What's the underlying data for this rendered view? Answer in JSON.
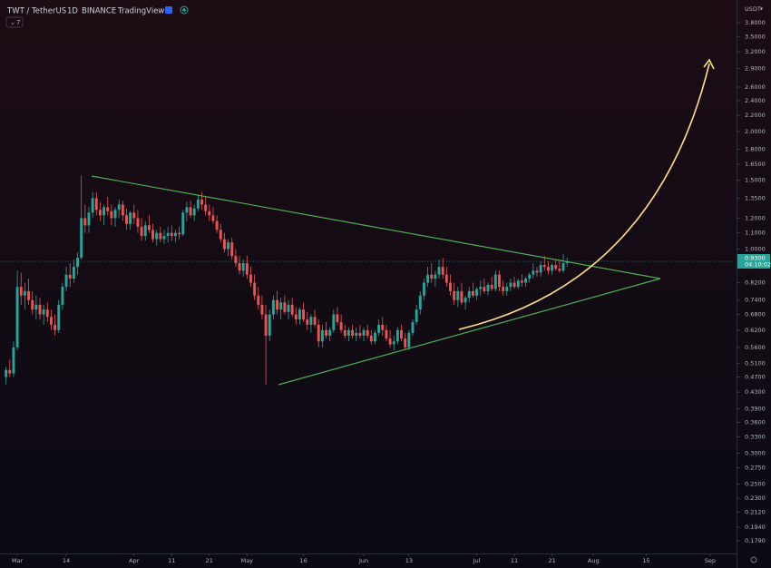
{
  "header": {
    "symbol": "TWT / TetherUS",
    "interval": "1D",
    "exchange": "BINANCE",
    "source": "TradingView",
    "indicator_count": 7
  },
  "chart_data": {
    "type": "candlestick",
    "currency": "USDT",
    "log_scale": true,
    "grid": false,
    "up_color": "#26a69a",
    "down_color": "#ef5350",
    "xlim": [
      -4.6,
      191
    ],
    "ylim": [
      0.166,
      4.23
    ],
    "xticks": [
      {
        "value": 0,
        "label": "Mar"
      },
      {
        "value": 13,
        "label": "14"
      },
      {
        "value": 31,
        "label": "Apr"
      },
      {
        "value": 41,
        "label": "11"
      },
      {
        "value": 51,
        "label": "21"
      },
      {
        "value": 61,
        "label": "May"
      },
      {
        "value": 76,
        "label": "16"
      },
      {
        "value": 92,
        "label": "Jun"
      },
      {
        "value": 104,
        "label": "13"
      },
      {
        "value": 122,
        "label": "Jul"
      },
      {
        "value": 132,
        "label": "11"
      },
      {
        "value": 142,
        "label": "21"
      },
      {
        "value": 153,
        "label": "Aug"
      },
      {
        "value": 167,
        "label": "15"
      },
      {
        "value": 184,
        "label": "Sep"
      }
    ],
    "yticks": [
      {
        "value": 3.8,
        "label": "3.8000"
      },
      {
        "value": 3.5,
        "label": "3.5000"
      },
      {
        "value": 3.2,
        "label": "3.2000"
      },
      {
        "value": 2.9,
        "label": "2.9000"
      },
      {
        "value": 2.6,
        "label": "2.6000"
      },
      {
        "value": 2.4,
        "label": "2.4000"
      },
      {
        "value": 2.2,
        "label": "2.2000"
      },
      {
        "value": 2.0,
        "label": "2.0000"
      },
      {
        "value": 1.8,
        "label": "1.8000"
      },
      {
        "value": 1.65,
        "label": "1.6500"
      },
      {
        "value": 1.5,
        "label": "1.5000"
      },
      {
        "value": 1.35,
        "label": "1.3500"
      },
      {
        "value": 1.2,
        "label": "1.2000"
      },
      {
        "value": 1.1,
        "label": "1.1000"
      },
      {
        "value": 1.0,
        "label": "1.0000"
      },
      {
        "value": 0.82,
        "label": "0.8200"
      },
      {
        "value": 0.74,
        "label": "0.7400"
      },
      {
        "value": 0.68,
        "label": "0.6800"
      },
      {
        "value": 0.62,
        "label": "0.6200"
      },
      {
        "value": 0.56,
        "label": "0.5600"
      },
      {
        "value": 0.51,
        "label": "0.5100"
      },
      {
        "value": 0.47,
        "label": "0.4700"
      },
      {
        "value": 0.43,
        "label": "0.4300"
      },
      {
        "value": 0.39,
        "label": "0.3900"
      },
      {
        "value": 0.36,
        "label": "0.3600"
      },
      {
        "value": 0.33,
        "label": "0.3300"
      },
      {
        "value": 0.3,
        "label": "0.3000"
      },
      {
        "value": 0.275,
        "label": "0.2750"
      },
      {
        "value": 0.25,
        "label": "0.2500"
      },
      {
        "value": 0.23,
        "label": "0.2300"
      },
      {
        "value": 0.212,
        "label": "0.2120"
      },
      {
        "value": 0.194,
        "label": "0.1940"
      },
      {
        "value": 0.179,
        "label": "0.1790"
      }
    ],
    "last_price": {
      "value": 0.93,
      "label": "0.9300"
    },
    "countdown": "04:10:02",
    "x": [
      -3,
      -2,
      -1,
      0,
      1,
      2,
      3,
      4,
      5,
      6,
      7,
      8,
      9,
      10,
      11,
      12,
      13,
      14,
      15,
      16,
      17,
      18,
      19,
      20,
      21,
      22,
      23,
      24,
      25,
      26,
      27,
      28,
      29,
      30,
      31,
      32,
      33,
      34,
      35,
      36,
      37,
      38,
      39,
      40,
      41,
      42,
      43,
      44,
      45,
      46,
      47,
      48,
      49,
      50,
      51,
      52,
      53,
      54,
      55,
      56,
      57,
      58,
      59,
      60,
      61,
      62,
      63,
      64,
      65,
      66,
      67,
      68,
      69,
      70,
      71,
      72,
      73,
      74,
      75,
      76,
      77,
      78,
      79,
      80,
      81,
      82,
      83,
      84,
      85,
      86,
      87,
      88,
      89,
      90,
      91,
      92,
      93,
      94,
      95,
      96,
      97,
      98,
      99,
      100,
      101,
      102,
      103,
      104,
      105,
      106,
      107,
      108,
      109,
      110,
      111,
      112,
      113,
      114,
      115,
      116,
      117,
      118,
      119,
      120,
      121,
      122,
      123,
      124,
      125,
      126,
      127,
      128,
      129,
      130,
      131,
      132,
      133,
      134,
      135,
      136,
      137,
      138,
      139,
      140,
      141,
      142,
      143,
      144,
      145,
      146
    ],
    "ohlc": [
      [
        0.47,
        0.5,
        0.45,
        0.49
      ],
      [
        0.49,
        0.52,
        0.47,
        0.48
      ],
      [
        0.48,
        0.58,
        0.47,
        0.56
      ],
      [
        0.56,
        0.88,
        0.55,
        0.8
      ],
      [
        0.8,
        0.87,
        0.72,
        0.76
      ],
      [
        0.76,
        0.82,
        0.7,
        0.78
      ],
      [
        0.78,
        0.84,
        0.72,
        0.74
      ],
      [
        0.74,
        0.78,
        0.68,
        0.7
      ],
      [
        0.7,
        0.76,
        0.66,
        0.72
      ],
      [
        0.72,
        0.75,
        0.66,
        0.68
      ],
      [
        0.68,
        0.72,
        0.64,
        0.7
      ],
      [
        0.7,
        0.73,
        0.65,
        0.67
      ],
      [
        0.67,
        0.7,
        0.62,
        0.64
      ],
      [
        0.64,
        0.68,
        0.6,
        0.62
      ],
      [
        0.62,
        0.74,
        0.61,
        0.72
      ],
      [
        0.72,
        0.82,
        0.7,
        0.8
      ],
      [
        0.8,
        0.9,
        0.78,
        0.86
      ],
      [
        0.86,
        0.92,
        0.8,
        0.84
      ],
      [
        0.84,
        0.94,
        0.82,
        0.9
      ],
      [
        0.9,
        0.98,
        0.86,
        0.95
      ],
      [
        0.95,
        1.54,
        0.94,
        1.2
      ],
      [
        1.2,
        1.3,
        1.1,
        1.15
      ],
      [
        1.15,
        1.28,
        1.1,
        1.24
      ],
      [
        1.24,
        1.4,
        1.2,
        1.35
      ],
      [
        1.35,
        1.4,
        1.22,
        1.26
      ],
      [
        1.26,
        1.32,
        1.18,
        1.22
      ],
      [
        1.22,
        1.3,
        1.15,
        1.28
      ],
      [
        1.28,
        1.36,
        1.22,
        1.25
      ],
      [
        1.25,
        1.3,
        1.15,
        1.2
      ],
      [
        1.2,
        1.28,
        1.14,
        1.26
      ],
      [
        1.26,
        1.34,
        1.2,
        1.3
      ],
      [
        1.3,
        1.33,
        1.18,
        1.22
      ],
      [
        1.22,
        1.27,
        1.12,
        1.16
      ],
      [
        1.16,
        1.25,
        1.12,
        1.24
      ],
      [
        1.24,
        1.3,
        1.16,
        1.2
      ],
      [
        1.2,
        1.26,
        1.1,
        1.14
      ],
      [
        1.14,
        1.2,
        1.05,
        1.08
      ],
      [
        1.08,
        1.18,
        1.05,
        1.15
      ],
      [
        1.15,
        1.22,
        1.1,
        1.12
      ],
      [
        1.12,
        1.16,
        1.04,
        1.06
      ],
      [
        1.06,
        1.12,
        1.02,
        1.1
      ],
      [
        1.1,
        1.14,
        1.04,
        1.06
      ],
      [
        1.06,
        1.12,
        1.03,
        1.08
      ],
      [
        1.08,
        1.14,
        1.04,
        1.1
      ],
      [
        1.1,
        1.15,
        1.05,
        1.08
      ],
      [
        1.08,
        1.12,
        1.04,
        1.1
      ],
      [
        1.1,
        1.14,
        1.06,
        1.09
      ],
      [
        1.09,
        1.26,
        1.08,
        1.24
      ],
      [
        1.24,
        1.32,
        1.18,
        1.28
      ],
      [
        1.28,
        1.33,
        1.2,
        1.22
      ],
      [
        1.22,
        1.3,
        1.18,
        1.27
      ],
      [
        1.27,
        1.38,
        1.25,
        1.34
      ],
      [
        1.34,
        1.4,
        1.26,
        1.3
      ],
      [
        1.3,
        1.36,
        1.22,
        1.25
      ],
      [
        1.25,
        1.3,
        1.18,
        1.22
      ],
      [
        1.22,
        1.28,
        1.16,
        1.18
      ],
      [
        1.18,
        1.22,
        1.1,
        1.12
      ],
      [
        1.12,
        1.16,
        1.04,
        1.06
      ],
      [
        1.06,
        1.1,
        0.98,
        1.0
      ],
      [
        1.0,
        1.06,
        0.96,
        1.04
      ],
      [
        1.04,
        1.07,
        0.94,
        0.96
      ],
      [
        0.96,
        1.0,
        0.9,
        0.92
      ],
      [
        0.92,
        0.96,
        0.86,
        0.88
      ],
      [
        0.88,
        0.94,
        0.85,
        0.92
      ],
      [
        0.92,
        0.96,
        0.84,
        0.86
      ],
      [
        0.86,
        0.9,
        0.8,
        0.82
      ],
      [
        0.82,
        0.86,
        0.74,
        0.76
      ],
      [
        0.76,
        0.8,
        0.7,
        0.72
      ],
      [
        0.72,
        0.76,
        0.66,
        0.68
      ],
      [
        0.68,
        0.72,
        0.45,
        0.6
      ],
      [
        0.6,
        0.7,
        0.58,
        0.68
      ],
      [
        0.68,
        0.76,
        0.66,
        0.74
      ],
      [
        0.74,
        0.78,
        0.68,
        0.7
      ],
      [
        0.7,
        0.75,
        0.66,
        0.73
      ],
      [
        0.73,
        0.76,
        0.68,
        0.69
      ],
      [
        0.69,
        0.74,
        0.66,
        0.72
      ],
      [
        0.72,
        0.75,
        0.67,
        0.68
      ],
      [
        0.68,
        0.71,
        0.64,
        0.66
      ],
      [
        0.66,
        0.71,
        0.64,
        0.7
      ],
      [
        0.7,
        0.73,
        0.65,
        0.66
      ],
      [
        0.66,
        0.69,
        0.62,
        0.64
      ],
      [
        0.64,
        0.68,
        0.61,
        0.67
      ],
      [
        0.67,
        0.7,
        0.63,
        0.64
      ],
      [
        0.64,
        0.66,
        0.56,
        0.58
      ],
      [
        0.58,
        0.64,
        0.56,
        0.62
      ],
      [
        0.62,
        0.65,
        0.59,
        0.6
      ],
      [
        0.6,
        0.63,
        0.58,
        0.62
      ],
      [
        0.62,
        0.7,
        0.61,
        0.68
      ],
      [
        0.68,
        0.71,
        0.64,
        0.65
      ],
      [
        0.65,
        0.68,
        0.61,
        0.62
      ],
      [
        0.62,
        0.64,
        0.59,
        0.6
      ],
      [
        0.6,
        0.63,
        0.58,
        0.62
      ],
      [
        0.62,
        0.64,
        0.59,
        0.6
      ],
      [
        0.6,
        0.63,
        0.58,
        0.61
      ],
      [
        0.61,
        0.64,
        0.59,
        0.6
      ],
      [
        0.6,
        0.63,
        0.58,
        0.62
      ],
      [
        0.62,
        0.64,
        0.59,
        0.6
      ],
      [
        0.6,
        0.62,
        0.57,
        0.58
      ],
      [
        0.58,
        0.62,
        0.57,
        0.61
      ],
      [
        0.61,
        0.66,
        0.6,
        0.64
      ],
      [
        0.64,
        0.67,
        0.6,
        0.62
      ],
      [
        0.62,
        0.64,
        0.58,
        0.59
      ],
      [
        0.59,
        0.62,
        0.56,
        0.57
      ],
      [
        0.57,
        0.6,
        0.55,
        0.58
      ],
      [
        0.58,
        0.63,
        0.57,
        0.62
      ],
      [
        0.62,
        0.64,
        0.58,
        0.59
      ],
      [
        0.59,
        0.61,
        0.55,
        0.56
      ],
      [
        0.56,
        0.62,
        0.55,
        0.61
      ],
      [
        0.61,
        0.66,
        0.6,
        0.65
      ],
      [
        0.65,
        0.72,
        0.64,
        0.7
      ],
      [
        0.7,
        0.78,
        0.68,
        0.76
      ],
      [
        0.76,
        0.84,
        0.74,
        0.82
      ],
      [
        0.82,
        0.9,
        0.8,
        0.86
      ],
      [
        0.86,
        0.92,
        0.82,
        0.84
      ],
      [
        0.84,
        0.88,
        0.8,
        0.86
      ],
      [
        0.86,
        0.94,
        0.84,
        0.9
      ],
      [
        0.9,
        0.95,
        0.84,
        0.86
      ],
      [
        0.86,
        0.9,
        0.8,
        0.82
      ],
      [
        0.82,
        0.86,
        0.76,
        0.78
      ],
      [
        0.78,
        0.82,
        0.72,
        0.74
      ],
      [
        0.74,
        0.8,
        0.71,
        0.78
      ],
      [
        0.78,
        0.82,
        0.72,
        0.73
      ],
      [
        0.73,
        0.76,
        0.7,
        0.75
      ],
      [
        0.75,
        0.8,
        0.73,
        0.78
      ],
      [
        0.78,
        0.82,
        0.75,
        0.76
      ],
      [
        0.76,
        0.8,
        0.74,
        0.79
      ],
      [
        0.79,
        0.83,
        0.76,
        0.8
      ],
      [
        0.8,
        0.84,
        0.77,
        0.78
      ],
      [
        0.78,
        0.82,
        0.76,
        0.81
      ],
      [
        0.81,
        0.85,
        0.78,
        0.79
      ],
      [
        0.79,
        0.88,
        0.78,
        0.86
      ],
      [
        0.86,
        0.88,
        0.78,
        0.8
      ],
      [
        0.8,
        0.83,
        0.76,
        0.78
      ],
      [
        0.78,
        0.82,
        0.76,
        0.8
      ],
      [
        0.8,
        0.84,
        0.78,
        0.82
      ],
      [
        0.82,
        0.85,
        0.79,
        0.8
      ],
      [
        0.8,
        0.84,
        0.79,
        0.83
      ],
      [
        0.83,
        0.86,
        0.8,
        0.82
      ],
      [
        0.82,
        0.85,
        0.8,
        0.84
      ],
      [
        0.84,
        0.87,
        0.82,
        0.86
      ],
      [
        0.86,
        0.92,
        0.84,
        0.88
      ],
      [
        0.88,
        0.9,
        0.85,
        0.87
      ],
      [
        0.87,
        0.93,
        0.85,
        0.91
      ],
      [
        0.91,
        0.96,
        0.88,
        0.9
      ],
      [
        0.9,
        0.93,
        0.86,
        0.88
      ],
      [
        0.88,
        0.92,
        0.86,
        0.91
      ],
      [
        0.91,
        0.94,
        0.88,
        0.89
      ],
      [
        0.89,
        0.93,
        0.87,
        0.88
      ],
      [
        0.88,
        0.97,
        0.87,
        0.92
      ],
      [
        0.92,
        0.95,
        0.9,
        0.93
      ]
    ]
  }
}
